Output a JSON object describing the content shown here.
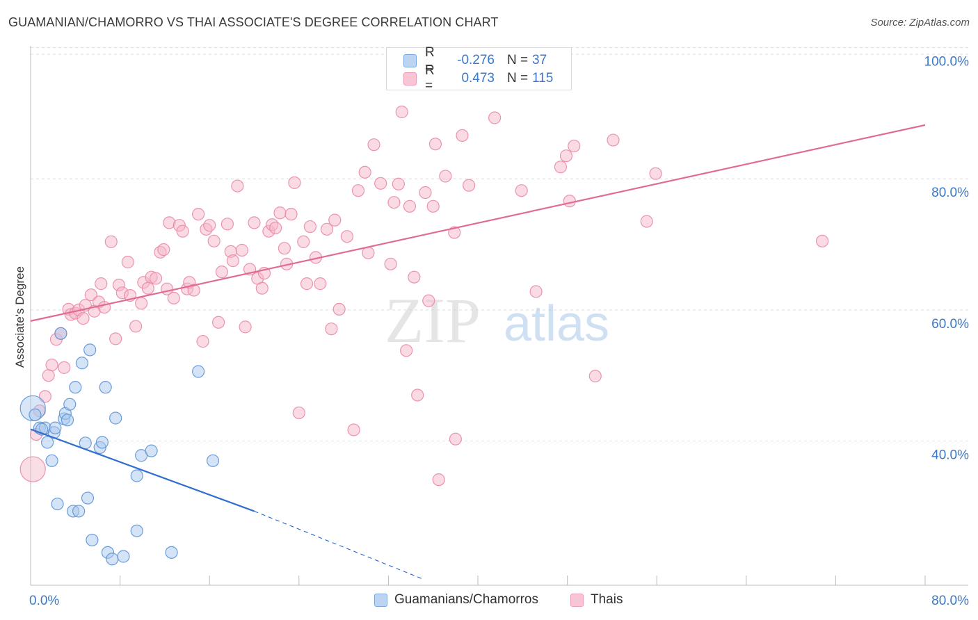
{
  "title": "GUAMANIAN/CHAMORRO VS THAI ASSOCIATE'S DEGREE CORRELATION CHART",
  "source": "Source: ZipAtlas.com",
  "watermark": {
    "zip": "ZIP",
    "atlas": "atlas"
  },
  "legend_top": {
    "rows": [
      {
        "r_label": "R =",
        "r_value": "-0.276",
        "n_label": "N =",
        "n_value": "37"
      },
      {
        "r_label": "R =",
        "r_value": "0.473",
        "n_label": "N =",
        "n_value": "115"
      }
    ]
  },
  "legend_bottom": {
    "items": [
      "Guamanians/Chamorros",
      "Thais"
    ]
  },
  "colors": {
    "blue_fill": "#a9c8ee",
    "blue_stroke": "#5b93d6",
    "blue_line": "#2f6fce",
    "pink_fill": "#f5b5c8",
    "pink_stroke": "#e98aa7",
    "pink_line": "#e06c94",
    "grid": "#dddddd",
    "tick_text": "#3a78c9",
    "axis_text": "#333333"
  },
  "chart_data": {
    "type": "scatter",
    "title": "GUAMANIAN/CHAMORRO VS THAI ASSOCIATE'S DEGREE CORRELATION CHART",
    "xlabel": "",
    "ylabel": "Associate's Degree",
    "xlim": [
      0,
      80
    ],
    "ylim": [
      18,
      99
    ],
    "x_tick_labels": [
      "0.0%",
      "80.0%"
    ],
    "y_ticks": [
      40,
      60,
      80,
      100
    ],
    "y_tick_labels": [
      "40.0%",
      "60.0%",
      "80.0%",
      "100.0%"
    ],
    "grid": true,
    "legend_position": "bottom",
    "series": [
      {
        "name": "Guamanians/Chamorros",
        "color": "#a9c8ee",
        "trend": {
          "x": [
            0,
            20
          ],
          "y": [
            41.8,
            29.3
          ],
          "dashed_to_x": 35,
          "dashed_to_y": 19.0
        },
        "points": [
          {
            "x": 0.2,
            "y": 45.0,
            "big": true
          },
          {
            "x": 0.4,
            "y": 44.0
          },
          {
            "x": 0.8,
            "y": 42.0
          },
          {
            "x": 1.3,
            "y": 42.0
          },
          {
            "x": 1.5,
            "y": 39.8
          },
          {
            "x": 1.9,
            "y": 37.0
          },
          {
            "x": 2.1,
            "y": 41.3
          },
          {
            "x": 2.4,
            "y": 30.4
          },
          {
            "x": 2.7,
            "y": 56.4
          },
          {
            "x": 3.0,
            "y": 43.4
          },
          {
            "x": 3.1,
            "y": 44.2
          },
          {
            "x": 3.3,
            "y": 43.2
          },
          {
            "x": 3.5,
            "y": 45.6
          },
          {
            "x": 3.8,
            "y": 29.3
          },
          {
            "x": 4.0,
            "y": 48.2
          },
          {
            "x": 4.3,
            "y": 29.3
          },
          {
            "x": 4.6,
            "y": 51.9
          },
          {
            "x": 4.9,
            "y": 39.7
          },
          {
            "x": 5.1,
            "y": 31.3
          },
          {
            "x": 5.3,
            "y": 53.9
          },
          {
            "x": 5.5,
            "y": 24.9
          },
          {
            "x": 6.2,
            "y": 39.0
          },
          {
            "x": 6.4,
            "y": 39.8
          },
          {
            "x": 6.7,
            "y": 48.2
          },
          {
            "x": 6.9,
            "y": 23.0
          },
          {
            "x": 7.3,
            "y": 22.0
          },
          {
            "x": 7.6,
            "y": 43.5
          },
          {
            "x": 8.3,
            "y": 22.4
          },
          {
            "x": 9.5,
            "y": 34.7
          },
          {
            "x": 9.5,
            "y": 26.3
          },
          {
            "x": 9.9,
            "y": 37.8
          },
          {
            "x": 10.8,
            "y": 38.5
          },
          {
            "x": 12.6,
            "y": 23.0
          },
          {
            "x": 15.0,
            "y": 50.6
          },
          {
            "x": 16.3,
            "y": 37.0
          },
          {
            "x": 1.0,
            "y": 41.8
          },
          {
            "x": 2.2,
            "y": 42.0
          }
        ]
      },
      {
        "name": "Thais",
        "color": "#f5b5c8",
        "trend": {
          "x": [
            0,
            80
          ],
          "y": [
            58.3,
            88.2
          ]
        },
        "points": [
          {
            "x": 0.2,
            "y": 35.7,
            "big": true
          },
          {
            "x": 0.5,
            "y": 41.0
          },
          {
            "x": 0.8,
            "y": 44.6
          },
          {
            "x": 1.3,
            "y": 46.8
          },
          {
            "x": 1.6,
            "y": 50.0
          },
          {
            "x": 1.9,
            "y": 51.6
          },
          {
            "x": 2.3,
            "y": 55.5
          },
          {
            "x": 2.7,
            "y": 56.4
          },
          {
            "x": 3.0,
            "y": 51.2
          },
          {
            "x": 3.4,
            "y": 60.1
          },
          {
            "x": 3.6,
            "y": 59.3
          },
          {
            "x": 4.0,
            "y": 59.5
          },
          {
            "x": 4.3,
            "y": 60.0
          },
          {
            "x": 4.7,
            "y": 58.7
          },
          {
            "x": 4.9,
            "y": 60.7
          },
          {
            "x": 5.4,
            "y": 62.3
          },
          {
            "x": 5.7,
            "y": 59.8
          },
          {
            "x": 6.1,
            "y": 61.2
          },
          {
            "x": 6.3,
            "y": 64.0
          },
          {
            "x": 6.6,
            "y": 60.4
          },
          {
            "x": 7.2,
            "y": 70.4
          },
          {
            "x": 7.6,
            "y": 55.6
          },
          {
            "x": 7.9,
            "y": 63.8
          },
          {
            "x": 8.2,
            "y": 62.6
          },
          {
            "x": 8.7,
            "y": 67.3
          },
          {
            "x": 8.9,
            "y": 62.2
          },
          {
            "x": 9.4,
            "y": 57.5
          },
          {
            "x": 9.9,
            "y": 61.0
          },
          {
            "x": 10.1,
            "y": 64.2
          },
          {
            "x": 10.5,
            "y": 63.3
          },
          {
            "x": 10.8,
            "y": 65.0
          },
          {
            "x": 11.2,
            "y": 64.8
          },
          {
            "x": 11.6,
            "y": 68.8
          },
          {
            "x": 11.9,
            "y": 69.2
          },
          {
            "x": 12.2,
            "y": 63.2
          },
          {
            "x": 12.4,
            "y": 73.3
          },
          {
            "x": 12.8,
            "y": 61.8
          },
          {
            "x": 13.3,
            "y": 72.9
          },
          {
            "x": 13.6,
            "y": 72.0
          },
          {
            "x": 14.0,
            "y": 63.2
          },
          {
            "x": 14.2,
            "y": 64.2
          },
          {
            "x": 14.6,
            "y": 63.0
          },
          {
            "x": 15.0,
            "y": 74.6
          },
          {
            "x": 15.4,
            "y": 55.2
          },
          {
            "x": 15.7,
            "y": 72.3
          },
          {
            "x": 16.0,
            "y": 72.9
          },
          {
            "x": 16.4,
            "y": 70.5
          },
          {
            "x": 16.8,
            "y": 58.1
          },
          {
            "x": 17.1,
            "y": 65.8
          },
          {
            "x": 17.6,
            "y": 73.1
          },
          {
            "x": 17.9,
            "y": 68.9
          },
          {
            "x": 18.1,
            "y": 67.5
          },
          {
            "x": 18.5,
            "y": 78.9
          },
          {
            "x": 18.9,
            "y": 69.1
          },
          {
            "x": 19.2,
            "y": 57.4
          },
          {
            "x": 19.6,
            "y": 66.2
          },
          {
            "x": 20.0,
            "y": 73.3
          },
          {
            "x": 20.3,
            "y": 64.8
          },
          {
            "x": 20.7,
            "y": 63.3
          },
          {
            "x": 20.9,
            "y": 65.6
          },
          {
            "x": 21.3,
            "y": 72.0
          },
          {
            "x": 21.6,
            "y": 73.0
          },
          {
            "x": 21.9,
            "y": 72.5
          },
          {
            "x": 22.3,
            "y": 74.8
          },
          {
            "x": 22.7,
            "y": 69.4
          },
          {
            "x": 22.9,
            "y": 67.0
          },
          {
            "x": 23.3,
            "y": 74.6
          },
          {
            "x": 23.6,
            "y": 79.4
          },
          {
            "x": 24.0,
            "y": 44.3
          },
          {
            "x": 24.4,
            "y": 70.4
          },
          {
            "x": 24.7,
            "y": 64.0
          },
          {
            "x": 25.0,
            "y": 72.7
          },
          {
            "x": 25.5,
            "y": 68.0
          },
          {
            "x": 25.9,
            "y": 64.0
          },
          {
            "x": 26.5,
            "y": 72.3
          },
          {
            "x": 26.9,
            "y": 57.1
          },
          {
            "x": 27.2,
            "y": 73.7
          },
          {
            "x": 27.6,
            "y": 60.1
          },
          {
            "x": 28.3,
            "y": 71.2
          },
          {
            "x": 28.9,
            "y": 41.7
          },
          {
            "x": 29.3,
            "y": 78.2
          },
          {
            "x": 29.9,
            "y": 81.0
          },
          {
            "x": 30.2,
            "y": 68.7
          },
          {
            "x": 30.7,
            "y": 85.2
          },
          {
            "x": 31.3,
            "y": 79.3
          },
          {
            "x": 32.2,
            "y": 67.0
          },
          {
            "x": 32.5,
            "y": 76.4
          },
          {
            "x": 32.9,
            "y": 79.2
          },
          {
            "x": 33.2,
            "y": 90.2
          },
          {
            "x": 33.6,
            "y": 53.8
          },
          {
            "x": 33.9,
            "y": 75.8
          },
          {
            "x": 34.3,
            "y": 65.0
          },
          {
            "x": 34.6,
            "y": 47.0
          },
          {
            "x": 35.3,
            "y": 77.9
          },
          {
            "x": 35.6,
            "y": 61.4
          },
          {
            "x": 36.0,
            "y": 75.8
          },
          {
            "x": 36.2,
            "y": 85.3
          },
          {
            "x": 36.5,
            "y": 34.1
          },
          {
            "x": 37.1,
            "y": 80.4
          },
          {
            "x": 38.0,
            "y": 40.3
          },
          {
            "x": 37.9,
            "y": 71.8
          },
          {
            "x": 38.6,
            "y": 86.6
          },
          {
            "x": 39.2,
            "y": 79.0
          },
          {
            "x": 41.5,
            "y": 89.3
          },
          {
            "x": 43.9,
            "y": 78.2
          },
          {
            "x": 45.2,
            "y": 62.8
          },
          {
            "x": 47.4,
            "y": 81.8
          },
          {
            "x": 47.9,
            "y": 83.5
          },
          {
            "x": 48.2,
            "y": 76.6
          },
          {
            "x": 48.6,
            "y": 85.0
          },
          {
            "x": 50.5,
            "y": 49.9
          },
          {
            "x": 52.1,
            "y": 85.9
          },
          {
            "x": 55.1,
            "y": 73.5
          },
          {
            "x": 55.9,
            "y": 80.8
          },
          {
            "x": 70.8,
            "y": 70.5
          }
        ]
      }
    ]
  }
}
